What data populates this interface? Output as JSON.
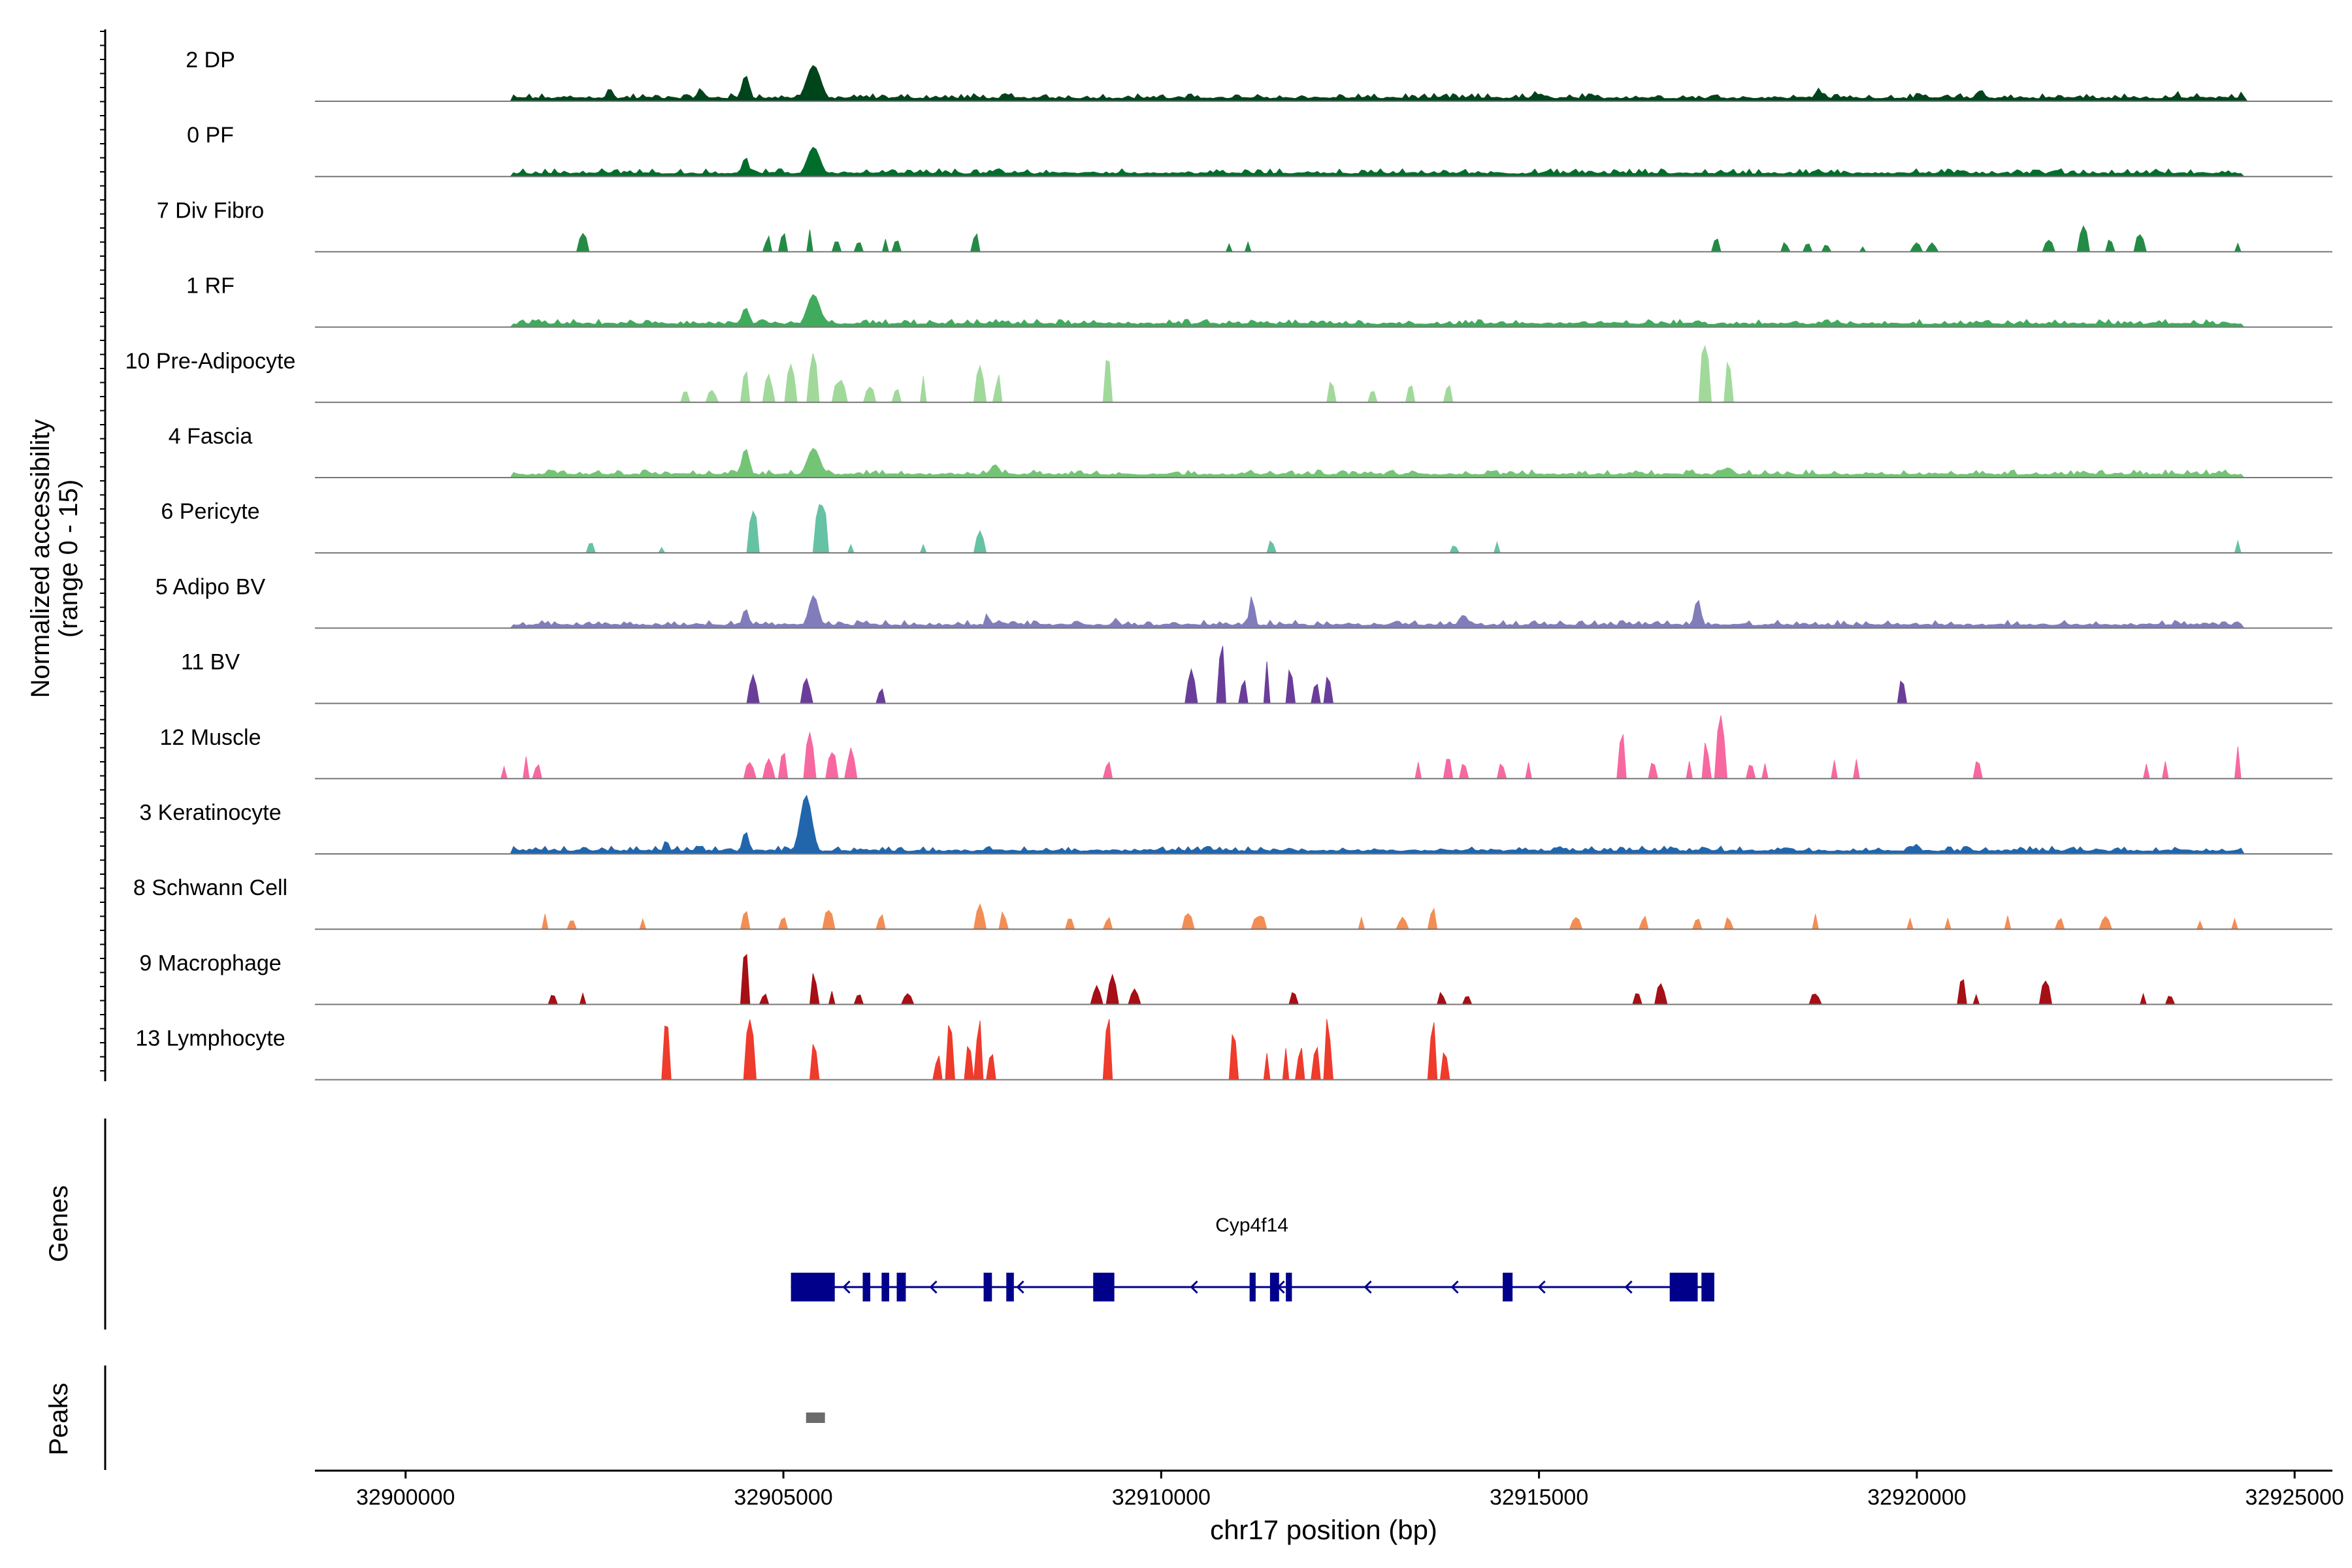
{
  "chart_data": {
    "type": "area",
    "title": "",
    "chromosome": "chr17",
    "xlabel": "chr17 position (bp)",
    "ylabel_line1": "Normalized accessibility",
    "ylabel_line2": "(range 0 - 15)",
    "y_range": [
      0,
      15
    ],
    "x_range": [
      32898800,
      32925500
    ],
    "x_ticks": [
      32900000,
      32905000,
      32910000,
      32915000,
      32920000,
      32925000
    ],
    "x_tick_labels": [
      "32900000",
      "32905000",
      "32910000",
      "32915000",
      "32920000",
      "32925000"
    ],
    "tracks": [
      {
        "name": "2 DP",
        "color": "#00441b",
        "style": "dense",
        "peaks": [
          [
            32905400,
            0.55,
            0.22
          ],
          [
            32904500,
            0.4,
            0.12
          ],
          [
            32902700,
            0.2,
            0.1
          ],
          [
            32903900,
            0.2,
            0.1
          ],
          [
            32918700,
            0.2,
            0.1
          ],
          [
            32920850,
            0.18,
            0.1
          ],
          [
            32914950,
            0.15,
            0.1
          ],
          [
            32923450,
            0.15,
            0.08
          ],
          [
            32924300,
            0.15,
            0.06
          ]
        ]
      },
      {
        "name": "0 PF",
        "color": "#006d2c",
        "style": "dense",
        "peaks": [
          [
            32905400,
            0.45,
            0.2
          ],
          [
            32904500,
            0.3,
            0.1
          ],
          [
            32902600,
            0.12,
            0.1
          ],
          [
            32907800,
            0.1,
            0.1
          ],
          [
            32917400,
            0.1,
            0.1
          ]
        ]
      },
      {
        "name": "7 Div Fibro",
        "color": "#238b45",
        "style": "sparse",
        "peaks": [
          [
            32902350,
            0.35,
            0.1
          ],
          [
            32904800,
            0.25,
            0.08
          ],
          [
            32905000,
            0.35,
            0.08
          ],
          [
            32905350,
            0.35,
            0.08
          ],
          [
            32905700,
            0.2,
            0.1
          ],
          [
            32906000,
            0.2,
            0.06
          ],
          [
            32906350,
            0.2,
            0.08
          ],
          [
            32906500,
            0.2,
            0.08
          ],
          [
            32907550,
            0.3,
            0.08
          ],
          [
            32910900,
            0.15,
            0.06
          ],
          [
            32911150,
            0.15,
            0.06
          ],
          [
            32917350,
            0.25,
            0.1
          ],
          [
            32918250,
            0.15,
            0.1
          ],
          [
            32918550,
            0.15,
            0.1
          ],
          [
            32918800,
            0.15,
            0.06
          ],
          [
            32919300,
            0.12,
            0.05
          ],
          [
            32920000,
            0.15,
            0.1
          ],
          [
            32920200,
            0.15,
            0.1
          ],
          [
            32921750,
            0.2,
            0.1
          ],
          [
            32922200,
            0.4,
            0.14
          ],
          [
            32922550,
            0.2,
            0.1
          ],
          [
            32922950,
            0.3,
            0.14
          ],
          [
            32924250,
            0.15,
            0.06
          ]
        ]
      },
      {
        "name": "1 RF",
        "color": "#41ab5d",
        "style": "dense",
        "peaks": [
          [
            32905400,
            0.5,
            0.2
          ],
          [
            32904500,
            0.3,
            0.12
          ],
          [
            32907900,
            0.1,
            0.12
          ],
          [
            32917100,
            0.1,
            0.15
          ],
          [
            32918900,
            0.08,
            0.06
          ]
        ]
      },
      {
        "name": "10 Pre-Adipocyte",
        "color": "#a1d99b",
        "style": "sparse",
        "peaks": [
          [
            32903700,
            0.2,
            0.08
          ],
          [
            32904050,
            0.2,
            0.1
          ],
          [
            32904500,
            0.55,
            0.08
          ],
          [
            32904800,
            0.45,
            0.1
          ],
          [
            32905100,
            0.7,
            0.1
          ],
          [
            32905400,
            0.8,
            0.12
          ],
          [
            32905750,
            0.4,
            0.14
          ],
          [
            32906150,
            0.25,
            0.14
          ],
          [
            32906500,
            0.25,
            0.08
          ],
          [
            32906850,
            0.4,
            0.08
          ],
          [
            32907600,
            0.6,
            0.1
          ],
          [
            32907850,
            0.45,
            0.08
          ],
          [
            32909300,
            0.8,
            0.1
          ],
          [
            32912250,
            0.35,
            0.08
          ],
          [
            32912800,
            0.2,
            0.1
          ],
          [
            32913300,
            0.35,
            0.08
          ],
          [
            32913800,
            0.3,
            0.08
          ],
          [
            32917200,
            1.0,
            0.14
          ],
          [
            32917500,
            0.65,
            0.1
          ]
        ]
      },
      {
        "name": "4 Fascia",
        "color": "#74c476",
        "style": "dense",
        "peaks": [
          [
            32905400,
            0.45,
            0.2
          ],
          [
            32904500,
            0.45,
            0.12
          ],
          [
            32907800,
            0.2,
            0.15
          ],
          [
            32903450,
            0.12,
            0.06
          ],
          [
            32917500,
            0.15,
            0.2
          ],
          [
            32916300,
            0.1,
            0.08
          ],
          [
            32922200,
            0.1,
            0.1
          ]
        ]
      },
      {
        "name": "6 Pericyte",
        "color": "#66c2a4",
        "style": "sparse",
        "peaks": [
          [
            32902450,
            0.2,
            0.06
          ],
          [
            32903380,
            0.1,
            0.05
          ],
          [
            32904600,
            0.75,
            0.12
          ],
          [
            32905500,
            0.8,
            0.2
          ],
          [
            32905900,
            0.15,
            0.06
          ],
          [
            32906850,
            0.15,
            0.06
          ],
          [
            32907600,
            0.35,
            0.1
          ],
          [
            32911450,
            0.2,
            0.1
          ],
          [
            32913880,
            0.15,
            0.06
          ],
          [
            32914450,
            0.2,
            0.05
          ],
          [
            32924250,
            0.2,
            0.05
          ]
        ]
      },
      {
        "name": "5 Adipo BV",
        "color": "#807dba",
        "style": "dense",
        "peaks": [
          [
            32905400,
            0.5,
            0.15
          ],
          [
            32904500,
            0.3,
            0.1
          ],
          [
            32907700,
            0.25,
            0.06
          ],
          [
            32911200,
            0.5,
            0.08
          ],
          [
            32917100,
            0.45,
            0.1
          ],
          [
            32914000,
            0.2,
            0.15
          ],
          [
            32909400,
            0.15,
            0.1
          ]
        ]
      },
      {
        "name": "11 BV",
        "color": "#6a3d9a",
        "style": "sparse",
        "peaks": [
          [
            32904600,
            0.5,
            0.1
          ],
          [
            32905300,
            0.4,
            0.1
          ],
          [
            32906300,
            0.25,
            0.1
          ],
          [
            32910400,
            0.55,
            0.1
          ],
          [
            32910800,
            1.0,
            0.08
          ],
          [
            32911100,
            0.4,
            0.08
          ],
          [
            32911400,
            0.8,
            0.08
          ],
          [
            32911700,
            0.6,
            0.1
          ],
          [
            32912050,
            0.35,
            0.08
          ],
          [
            32912200,
            0.5,
            0.1
          ],
          [
            32919800,
            0.45,
            0.06
          ]
        ]
      },
      {
        "name": "12 Muscle",
        "color": "#f768a1",
        "style": "sparse",
        "peaks": [
          [
            32901300,
            0.2,
            0.06
          ],
          [
            32901600,
            0.4,
            0.06
          ],
          [
            32901750,
            0.3,
            0.06
          ],
          [
            32904550,
            0.3,
            0.1
          ],
          [
            32904800,
            0.35,
            0.1
          ],
          [
            32905000,
            0.5,
            0.1
          ],
          [
            32905350,
            0.8,
            0.1
          ],
          [
            32905650,
            0.5,
            0.1
          ],
          [
            32905900,
            0.5,
            0.1
          ],
          [
            32909300,
            0.3,
            0.08
          ],
          [
            32913400,
            0.3,
            0.06
          ],
          [
            32913800,
            0.35,
            0.1
          ],
          [
            32914000,
            0.3,
            0.06
          ],
          [
            32914500,
            0.3,
            0.06
          ],
          [
            32914850,
            0.3,
            0.06
          ],
          [
            32916100,
            0.8,
            0.1
          ],
          [
            32916500,
            0.3,
            0.08
          ],
          [
            32917000,
            0.3,
            0.06
          ],
          [
            32917400,
            1.0,
            0.12
          ],
          [
            32917200,
            0.6,
            0.08
          ],
          [
            32917800,
            0.3,
            0.06
          ],
          [
            32918000,
            0.3,
            0.06
          ],
          [
            32918900,
            0.3,
            0.06
          ],
          [
            32919200,
            0.3,
            0.06
          ],
          [
            32920800,
            0.35,
            0.08
          ],
          [
            32923050,
            0.3,
            0.06
          ],
          [
            32923300,
            0.3,
            0.06
          ],
          [
            32924250,
            0.5,
            0.06
          ]
        ]
      },
      {
        "name": "3 Keratinocyte",
        "color": "#2166ac",
        "style": "dense",
        "peaks": [
          [
            32905300,
            0.9,
            0.18
          ],
          [
            32904500,
            0.35,
            0.1
          ],
          [
            32903450,
            0.25,
            0.06
          ],
          [
            32920000,
            0.15,
            0.1
          ],
          [
            32918300,
            0.1,
            0.1
          ],
          [
            32916800,
            0.1,
            0.1
          ]
        ]
      },
      {
        "name": "8 Schwann Cell",
        "color": "#f28e55",
        "style": "sparse",
        "peaks": [
          [
            32901850,
            0.25,
            0.06
          ],
          [
            32902200,
            0.2,
            0.06
          ],
          [
            32903150,
            0.2,
            0.06
          ],
          [
            32904500,
            0.3,
            0.1
          ],
          [
            32905000,
            0.2,
            0.1
          ],
          [
            32905600,
            0.35,
            0.15
          ],
          [
            32906300,
            0.25,
            0.1
          ],
          [
            32907600,
            0.4,
            0.12
          ],
          [
            32907900,
            0.3,
            0.08
          ],
          [
            32908800,
            0.2,
            0.1
          ],
          [
            32909300,
            0.2,
            0.08
          ],
          [
            32910350,
            0.25,
            0.15
          ],
          [
            32911300,
            0.25,
            0.15
          ],
          [
            32912650,
            0.2,
            0.08
          ],
          [
            32913200,
            0.2,
            0.1
          ],
          [
            32913600,
            0.35,
            0.1
          ],
          [
            32915500,
            0.2,
            0.12
          ],
          [
            32916400,
            0.2,
            0.08
          ],
          [
            32917100,
            0.2,
            0.08
          ],
          [
            32917500,
            0.2,
            0.1
          ],
          [
            32918650,
            0.3,
            0.06
          ],
          [
            32919900,
            0.2,
            0.06
          ],
          [
            32920400,
            0.2,
            0.06
          ],
          [
            32921200,
            0.25,
            0.06
          ],
          [
            32921900,
            0.2,
            0.08
          ],
          [
            32922500,
            0.2,
            0.12
          ],
          [
            32923750,
            0.15,
            0.06
          ],
          [
            32924200,
            0.2,
            0.06
          ]
        ]
      },
      {
        "name": "9 Macrophage",
        "color": "#a50f15",
        "style": "sparse",
        "peaks": [
          [
            32901950,
            0.2,
            0.06
          ],
          [
            32902350,
            0.2,
            0.05
          ],
          [
            32904500,
            1.0,
            0.08
          ],
          [
            32904750,
            0.2,
            0.06
          ],
          [
            32905400,
            0.5,
            0.1
          ],
          [
            32905650,
            0.25,
            0.06
          ],
          [
            32906000,
            0.2,
            0.06
          ],
          [
            32906650,
            0.2,
            0.1
          ],
          [
            32909150,
            0.3,
            0.1
          ],
          [
            32909350,
            0.5,
            0.1
          ],
          [
            32909650,
            0.25,
            0.1
          ],
          [
            32911750,
            0.3,
            0.05
          ],
          [
            32913700,
            0.2,
            0.08
          ],
          [
            32914050,
            0.2,
            0.05
          ],
          [
            32916300,
            0.25,
            0.06
          ],
          [
            32916600,
            0.35,
            0.12
          ],
          [
            32918650,
            0.2,
            0.1
          ],
          [
            32920600,
            0.5,
            0.08
          ],
          [
            32920800,
            0.2,
            0.05
          ],
          [
            32921700,
            0.4,
            0.15
          ],
          [
            32923000,
            0.2,
            0.05
          ],
          [
            32923350,
            0.2,
            0.05
          ]
        ]
      },
      {
        "name": "13 Lymphocyte",
        "color": "#ef3b2c",
        "style": "sparse",
        "peaks": [
          [
            32903450,
            1.0,
            0.08
          ],
          [
            32904550,
            1.0,
            0.12
          ],
          [
            32905400,
            0.6,
            0.1
          ],
          [
            32907050,
            0.4,
            0.08
          ],
          [
            32907200,
            1.0,
            0.08
          ],
          [
            32907450,
            0.6,
            0.08
          ],
          [
            32907600,
            1.0,
            0.08
          ],
          [
            32907750,
            0.5,
            0.08
          ],
          [
            32909300,
            1.0,
            0.1
          ],
          [
            32910950,
            0.8,
            0.1
          ],
          [
            32911400,
            0.5,
            0.08
          ],
          [
            32911650,
            0.5,
            0.08
          ],
          [
            32911850,
            0.5,
            0.08
          ],
          [
            32912050,
            0.6,
            0.08
          ],
          [
            32912200,
            1.0,
            0.08
          ],
          [
            32913600,
            1.0,
            0.1
          ],
          [
            32913750,
            0.5,
            0.08
          ]
        ]
      }
    ],
    "genes_panel_label": "Genes",
    "gene": {
      "name": "Cyp4f14",
      "color": "#00008b",
      "strand": "-",
      "span": [
        32905100,
        32917300
      ],
      "exons": [
        [
          32905100,
          32905680
        ],
        [
          32906050,
          32906150
        ],
        [
          32906300,
          32906400
        ],
        [
          32906500,
          32906620
        ],
        [
          32907650,
          32907760
        ],
        [
          32907950,
          32908050
        ],
        [
          32909100,
          32909380
        ],
        [
          32911170,
          32911250
        ],
        [
          32911440,
          32911560
        ],
        [
          32911650,
          32911730
        ],
        [
          32914520,
          32914650
        ],
        [
          32916730,
          32917100
        ],
        [
          32917150,
          32917320
        ]
      ]
    },
    "peaks_panel_label": "Peaks",
    "peak_regions": [
      [
        32905300,
        32905550
      ]
    ],
    "peak_color": "#6b6b6b"
  }
}
